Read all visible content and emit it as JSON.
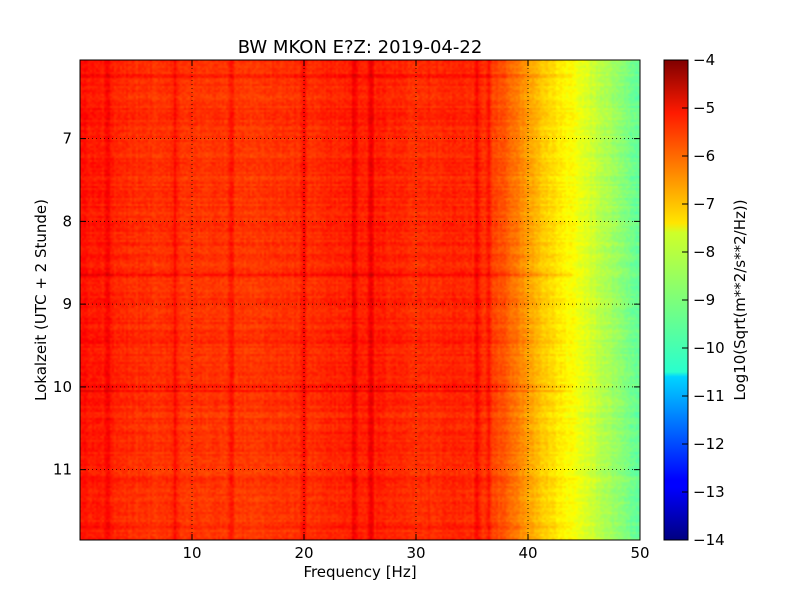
{
  "chart_data": {
    "type": "heatmap",
    "title": "BW MKON E?Z: 2019-04-22",
    "xlabel": "Frequency [Hz]",
    "ylabel": "Lokalzeit (UTC + 2 Stunde)",
    "xlim": [
      0,
      50
    ],
    "ylim": [
      11.85,
      6.05
    ],
    "y_inverted": true,
    "x_ticks": [
      10,
      20,
      30,
      40,
      50
    ],
    "y_ticks": [
      7,
      8,
      9,
      10,
      11
    ],
    "grid": true,
    "colormap": "jet",
    "colorbar": {
      "label": "Log10(Sqrt(m**2/s**2/Hz))",
      "range": [
        -14,
        -4
      ],
      "ticks": [
        -4,
        -5,
        -6,
        -7,
        -8,
        -9,
        -10,
        -11,
        -12,
        -13,
        -14
      ]
    },
    "profile": {
      "description_freq_hz": [
        0,
        5,
        10,
        15,
        20,
        25,
        30,
        35,
        38,
        40,
        42,
        44,
        46,
        48,
        50
      ],
      "log10_psd": [
        -5.4,
        -5.7,
        -5.75,
        -5.8,
        -5.7,
        -5.5,
        -5.65,
        -5.6,
        -6.1,
        -6.8,
        -7.4,
        -7.8,
        -8.3,
        -8.8,
        -9.3
      ]
    },
    "spectral_lines_hz": [
      2.5,
      8.5,
      13.5,
      20.0,
      24.5,
      26.0,
      35.5,
      36.5
    ],
    "horizontal_features_hour": [
      6.25,
      8.65,
      9.45,
      10.0,
      10.05,
      11.7
    ]
  }
}
